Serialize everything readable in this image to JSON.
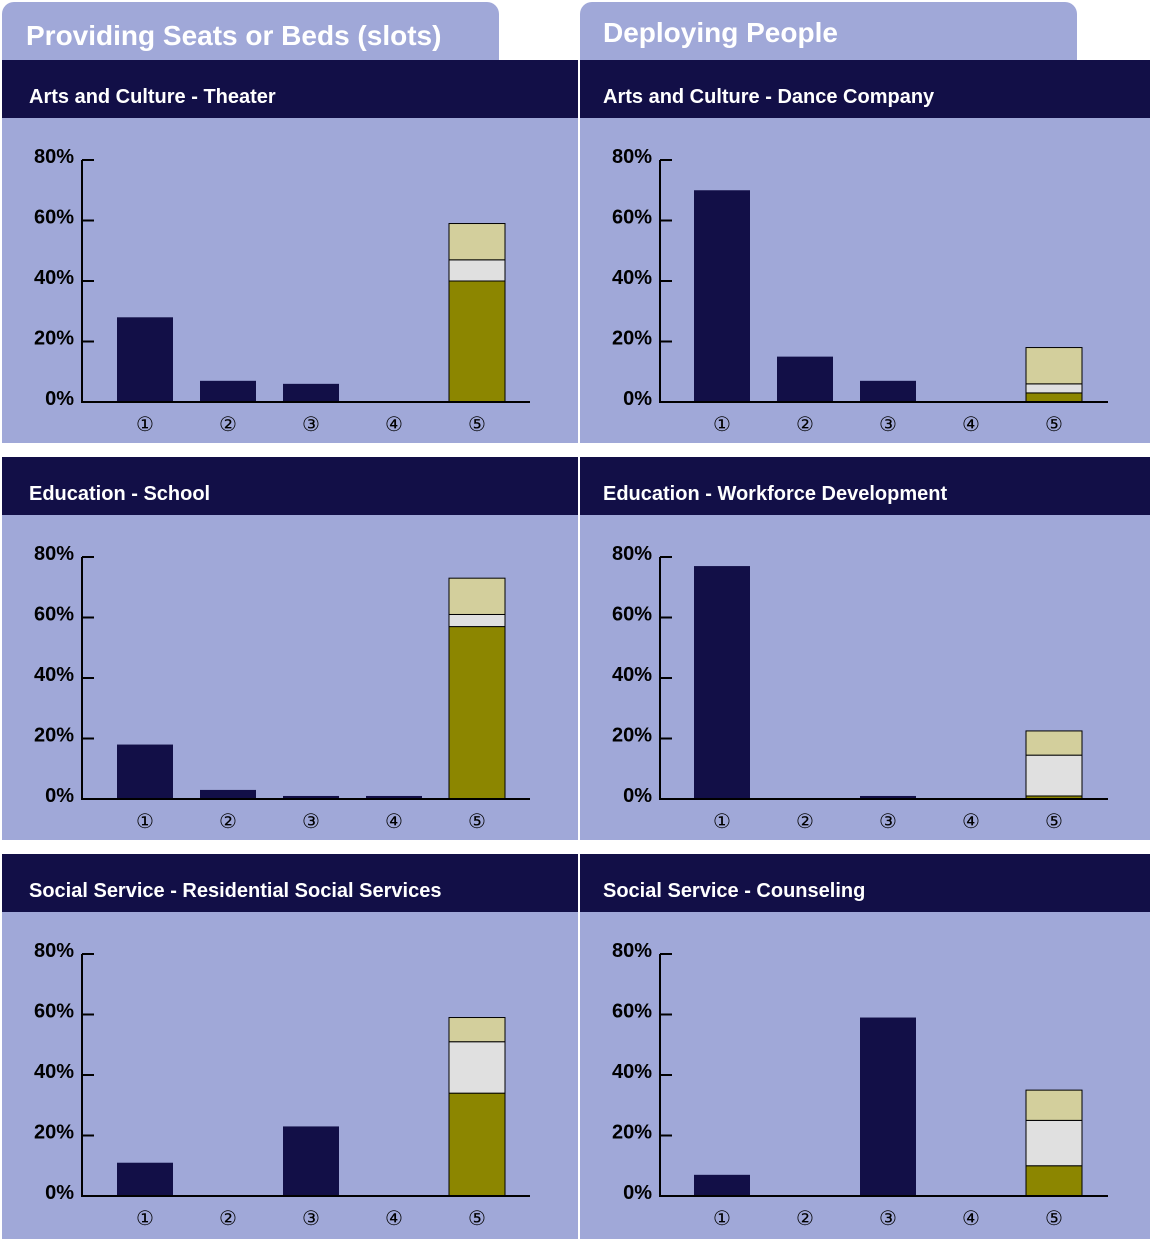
{
  "columns": [
    {
      "title": "Providing Seats or Beds (slots)"
    },
    {
      "title": "Deploying People"
    }
  ],
  "colors": {
    "primary": "#120f47",
    "stack_bottom": "#8c8600",
    "stack_middle": "#e0e0e0",
    "stack_top": "#d3cf9c",
    "panel_bg": "#a0a8d8"
  },
  "chart_data": [
    {
      "type": "bar",
      "title": "Arts and Culture - Theater",
      "categories": [
        "①",
        "②",
        "③",
        "④",
        "⑤"
      ],
      "values": [
        28,
        7,
        6,
        0,
        null
      ],
      "stacked_last": [
        40,
        7,
        12
      ],
      "yticks": [
        "0%",
        "20%",
        "40%",
        "60%",
        "80%"
      ],
      "ylim": [
        0,
        80
      ]
    },
    {
      "type": "bar",
      "title": "Arts and Culture - Dance Company",
      "categories": [
        "①",
        "②",
        "③",
        "④",
        "⑤"
      ],
      "values": [
        70,
        15,
        7,
        0,
        null
      ],
      "stacked_last": [
        3,
        3,
        12
      ],
      "yticks": [
        "0%",
        "20%",
        "40%",
        "60%",
        "80%"
      ],
      "ylim": [
        0,
        80
      ]
    },
    {
      "type": "bar",
      "title": "Education - School",
      "categories": [
        "①",
        "②",
        "③",
        "④",
        "⑤"
      ],
      "values": [
        18,
        3,
        1,
        1,
        null
      ],
      "stacked_last": [
        57,
        4,
        12
      ],
      "yticks": [
        "0%",
        "20%",
        "40%",
        "60%",
        "80%"
      ],
      "ylim": [
        0,
        80
      ]
    },
    {
      "type": "bar",
      "title": "Education - Workforce Development",
      "categories": [
        "①",
        "②",
        "③",
        "④",
        "⑤"
      ],
      "values": [
        77,
        0,
        1,
        0,
        null
      ],
      "stacked_last": [
        1,
        13.5,
        8
      ],
      "yticks": [
        "0%",
        "20%",
        "40%",
        "60%",
        "80%"
      ],
      "ylim": [
        0,
        80
      ]
    },
    {
      "type": "bar",
      "title": "Social Service - Residential Social Services",
      "categories": [
        "①",
        "②",
        "③",
        "④",
        "⑤"
      ],
      "values": [
        11,
        0,
        23,
        0,
        null
      ],
      "stacked_last": [
        34,
        17,
        8
      ],
      "yticks": [
        "0%",
        "20%",
        "40%",
        "60%",
        "80%"
      ],
      "ylim": [
        0,
        80
      ]
    },
    {
      "type": "bar",
      "title": "Social Service - Counseling",
      "categories": [
        "①",
        "②",
        "③",
        "④",
        "⑤"
      ],
      "values": [
        7,
        0,
        59,
        0,
        null
      ],
      "stacked_last": [
        10,
        15,
        10
      ],
      "yticks": [
        "0%",
        "20%",
        "40%",
        "60%",
        "80%"
      ],
      "ylim": [
        0,
        80
      ]
    }
  ]
}
